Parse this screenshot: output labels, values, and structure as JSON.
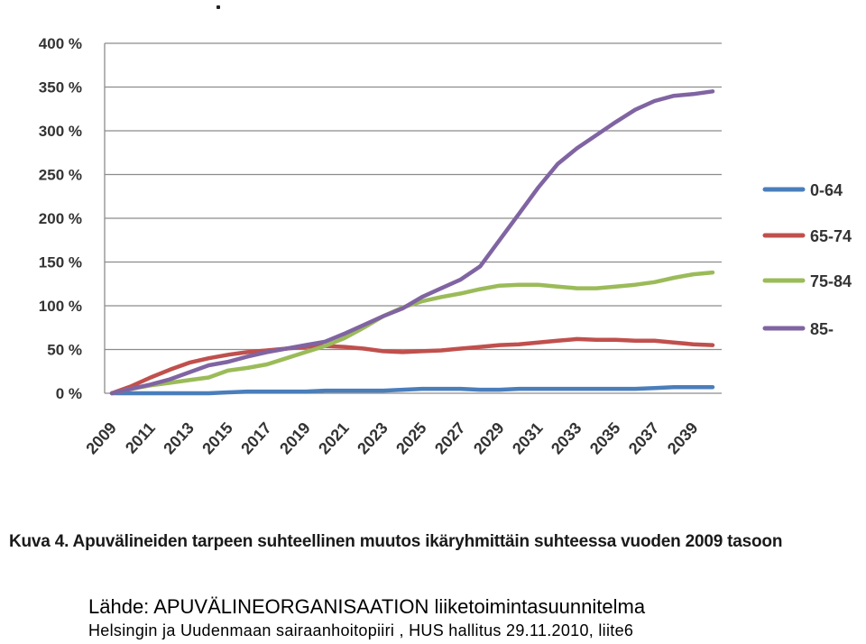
{
  "chart_data": {
    "type": "line",
    "title": "",
    "xlabel": "",
    "ylabel": "",
    "ylim": [
      0,
      400
    ],
    "yticks": [
      0,
      50,
      100,
      150,
      200,
      250,
      300,
      350,
      400
    ],
    "ytick_labels": [
      "0 %",
      "50 %",
      "100 %",
      "150 %",
      "200 %",
      "250 %",
      "300 %",
      "350 %",
      "400 %"
    ],
    "x": [
      2009,
      2010,
      2011,
      2012,
      2013,
      2014,
      2015,
      2016,
      2017,
      2018,
      2019,
      2020,
      2021,
      2022,
      2023,
      2024,
      2025,
      2026,
      2027,
      2028,
      2029,
      2030,
      2031,
      2032,
      2033,
      2034,
      2035,
      2036,
      2037,
      2038,
      2039,
      2040
    ],
    "xtick_labels": [
      "2009",
      "2011",
      "2013",
      "2015",
      "2017",
      "2019",
      "2021",
      "2023",
      "2025",
      "2027",
      "2029",
      "2031",
      "2033",
      "2035",
      "2037",
      "2039"
    ],
    "grid": "horizontal",
    "legend_position": "right",
    "series": [
      {
        "name": "0-64",
        "color": "#4a7ebb",
        "values": [
          0,
          0,
          0,
          0,
          0,
          0,
          1,
          2,
          2,
          2,
          2,
          3,
          3,
          3,
          3,
          4,
          5,
          5,
          5,
          4,
          4,
          5,
          5,
          5,
          5,
          5,
          5,
          5,
          6,
          7,
          7,
          7
        ]
      },
      {
        "name": "65-74",
        "color": "#c0504d",
        "values": [
          0,
          8,
          18,
          27,
          35,
          40,
          44,
          47,
          49,
          51,
          53,
          54,
          53,
          51,
          48,
          47,
          48,
          49,
          51,
          53,
          55,
          56,
          58,
          60,
          62,
          61,
          61,
          60,
          60,
          58,
          56,
          55
        ]
      },
      {
        "name": "75-84",
        "color": "#9bbb59",
        "values": [
          0,
          5,
          9,
          12,
          15,
          18,
          26,
          29,
          33,
          40,
          47,
          54,
          63,
          75,
          88,
          98,
          105,
          110,
          114,
          119,
          123,
          124,
          124,
          122,
          120,
          120,
          122,
          124,
          127,
          132,
          136,
          138
        ]
      },
      {
        "name": "85-",
        "color": "#8064a2",
        "values": [
          0,
          5,
          10,
          16,
          24,
          32,
          36,
          42,
          47,
          51,
          55,
          59,
          68,
          78,
          88,
          97,
          110,
          120,
          130,
          145,
          175,
          205,
          235,
          262,
          280,
          295,
          310,
          324,
          334,
          340,
          342,
          345
        ]
      }
    ]
  },
  "caption": "Kuva 4. Apuvälineiden tarpeen suhteellinen muutos ikäryhmittäin suhteessa vuoden 2009 tasoon",
  "source": {
    "line1": "Lähde: APUVÄLINEORGANISAATION liiketoimintasuunnitelma",
    "line2": "Helsingin ja Uudenmaan sairaanhoitopiiri , HUS hallitus 29.11.2010, liite6"
  }
}
